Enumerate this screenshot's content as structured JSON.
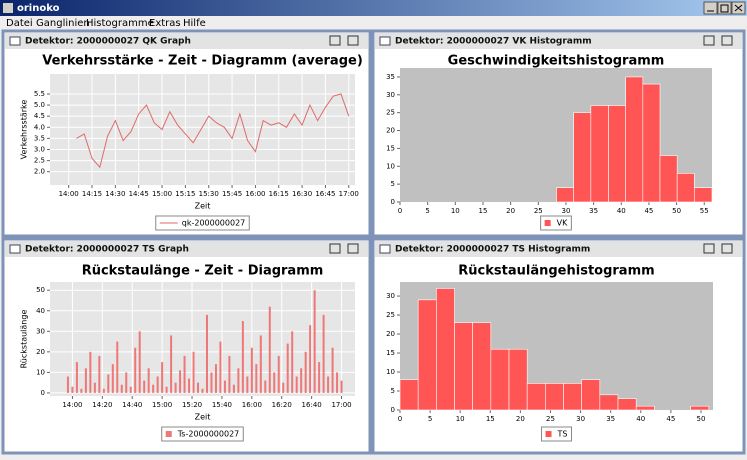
{
  "window": {
    "title": "orinoko"
  },
  "menu": {
    "items": [
      "Datei",
      "Ganglinien",
      "Histogramme",
      "Extras",
      "Hilfe"
    ]
  },
  "panels": [
    {
      "title": "Detektor: 2000000027 QK Graph",
      "chart": {
        "type": "line",
        "title": "Verkehrsstärke - Zeit - Diagramm (average)",
        "x_label": "Zeit",
        "y_label": "Verkehrsstärke",
        "x": [
          "14:05",
          "14:10",
          "14:15",
          "14:20",
          "14:25",
          "14:30",
          "14:35",
          "14:40",
          "14:45",
          "14:50",
          "14:55",
          "15:00",
          "15:05",
          "15:10",
          "15:15",
          "15:20",
          "15:25",
          "15:30",
          "15:35",
          "15:40",
          "15:45",
          "15:50",
          "15:55",
          "16:00",
          "16:05",
          "16:10",
          "16:15",
          "16:20",
          "16:25",
          "16:30",
          "16:35",
          "16:40",
          "16:45",
          "16:50",
          "16:55",
          "17:00"
        ],
        "series": [
          {
            "name": "qk-2000000027",
            "color": "#e06a6a",
            "values": [
              3.5,
              3.7,
              2.6,
              2.2,
              3.6,
              4.3,
              3.4,
              3.8,
              4.6,
              5.0,
              4.2,
              3.9,
              4.7,
              4.1,
              3.7,
              3.3,
              3.9,
              4.5,
              4.2,
              4.0,
              3.5,
              4.6,
              3.4,
              2.9,
              4.3,
              4.1,
              4.2,
              4.0,
              4.6,
              4.1,
              5.0,
              4.3,
              4.9,
              5.4,
              5.5,
              4.5
            ]
          }
        ],
        "xlim": [
          "13:48",
          "17:04"
        ],
        "xticks": [
          "14:00",
          "14:15",
          "14:30",
          "14:45",
          "15:00",
          "15:15",
          "15:30",
          "15:45",
          "16:00",
          "16:15",
          "16:30",
          "16:45",
          "17:00"
        ],
        "ylim": [
          1.4,
          6.4
        ],
        "yticks": [
          {
            "value": 2,
            "label": "2.0"
          },
          2.5,
          {
            "value": 3,
            "label": "3.0"
          },
          3.5,
          {
            "value": 4,
            "label": "4.0"
          },
          4.5,
          {
            "value": 5,
            "label": "5.0"
          },
          5.5
        ],
        "grid": true,
        "plot_background": "#e6e6e6"
      }
    },
    {
      "title": "Detektor: 2000000027 VK Histogramm",
      "chart": {
        "type": "histogram",
        "title": "Geschwindigkeitshistogramm",
        "bins": [
          28.3,
          31.4,
          34.5,
          37.7,
          40.8,
          43.9,
          47.0,
          50.1,
          53.2,
          56.4
        ],
        "series": [
          {
            "name": "VK",
            "color": "#ff5555",
            "values": [
              4,
              25,
              27,
              27,
              35,
              33,
              13,
              8,
              4
            ]
          }
        ],
        "xlim": [
          0,
          56.4
        ],
        "xticks": [
          0,
          5,
          10,
          15,
          20,
          25,
          30,
          35,
          40,
          45,
          50,
          55
        ],
        "ylim": [
          0,
          37.5
        ],
        "yticks": [
          0,
          5,
          10,
          15,
          20,
          25,
          30,
          35
        ],
        "grid": false,
        "plot_background": "#c0c0c0"
      }
    },
    {
      "title": "Detektor: 2000000027 TS Graph",
      "chart": {
        "type": "spikes",
        "title": "Rückstaulänge - Zeit - Diagramm",
        "x_label": "Zeit",
        "y_label": "Rückstaulänge",
        "x": [
          "13:57",
          "14:00",
          "14:03",
          "14:06",
          "14:09",
          "14:12",
          "14:15",
          "14:18",
          "14:21",
          "14:24",
          "14:27",
          "14:30",
          "14:33",
          "14:36",
          "14:39",
          "14:42",
          "14:45",
          "14:48",
          "14:51",
          "14:54",
          "14:57",
          "15:00",
          "15:03",
          "15:06",
          "15:09",
          "15:12",
          "15:15",
          "15:18",
          "15:21",
          "15:24",
          "15:27",
          "15:30",
          "15:33",
          "15:36",
          "15:39",
          "15:42",
          "15:45",
          "15:48",
          "15:51",
          "15:54",
          "15:57",
          "16:00",
          "16:03",
          "16:06",
          "16:09",
          "16:12",
          "16:15",
          "16:18",
          "16:21",
          "16:24",
          "16:27",
          "16:30",
          "16:33",
          "16:36",
          "16:39",
          "16:42",
          "16:45",
          "16:48",
          "16:51",
          "16:54",
          "16:57",
          "17:00"
        ],
        "series": [
          {
            "name": "Ts-2000000027",
            "color": "#ee7777",
            "values": [
              8,
              3,
              15,
              2,
              12,
              20,
              5,
              18,
              2,
              9,
              14,
              25,
              4,
              10,
              3,
              22,
              30,
              6,
              12,
              4,
              8,
              15,
              3,
              28,
              5,
              11,
              18,
              7,
              20,
              5,
              2,
              38,
              10,
              14,
              25,
              6,
              18,
              4,
              12,
              35,
              8,
              22,
              14,
              28,
              6,
              42,
              10,
              18,
              5,
              24,
              30,
              8,
              12,
              20,
              33,
              50,
              15,
              38,
              8,
              22,
              10,
              6
            ]
          }
        ],
        "xlim": [
          "13:45",
          "17:09"
        ],
        "xticks": [
          "14:00",
          "14:20",
          "14:40",
          "15:00",
          "15:20",
          "15:40",
          "16:00",
          "16:20",
          "16:40",
          "17:00"
        ],
        "ylim": [
          -1.5,
          54
        ],
        "yticks": [
          0,
          10,
          20,
          30,
          40,
          50
        ],
        "grid": true,
        "plot_background": "#e6e6e6"
      }
    },
    {
      "title": "Detektor: 2000000027 TS Histogramm",
      "chart": {
        "type": "histogram",
        "title": "Rückstaulängehistogramm",
        "bins": [
          0,
          3.02,
          6.04,
          9.05,
          12.07,
          15.09,
          18.11,
          21.13,
          24.14,
          27.16,
          30.18,
          33.2,
          36.22,
          39.24,
          42.25,
          45.27,
          48.29,
          51.31
        ],
        "series": [
          {
            "name": "TS",
            "color": "#ff5555",
            "values": [
              8,
              29,
              32,
              23,
              23,
              16,
              16,
              7,
              7,
              7,
              8,
              4,
              3,
              1,
              0,
              0,
              1
            ]
          }
        ],
        "xlim": [
          0,
          52
        ],
        "xticks": [
          0,
          5,
          10,
          15,
          20,
          25,
          30,
          35,
          40,
          45,
          50
        ],
        "ylim": [
          0,
          33.7
        ],
        "yticks": [
          0,
          5,
          10,
          15,
          20,
          25,
          30
        ],
        "grid": false,
        "plot_background": "#c0c0c0"
      }
    }
  ]
}
